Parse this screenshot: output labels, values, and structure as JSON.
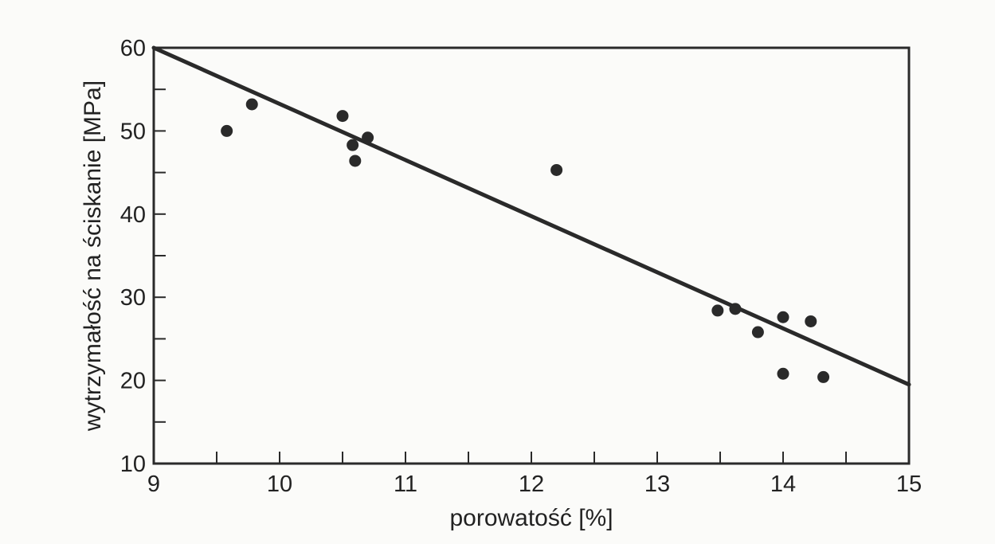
{
  "chart_data": {
    "type": "scatter",
    "title": "",
    "xlabel": "porowatość [%]",
    "ylabel": "wytrzymałość na ściskanie [MPa]",
    "xlim": [
      9,
      15
    ],
    "ylim": [
      10,
      60
    ],
    "x_ticks": [
      "9",
      "10",
      "11",
      "12",
      "13",
      "14",
      "15"
    ],
    "y_ticks": [
      "10",
      "20",
      "30",
      "40",
      "50",
      "60"
    ],
    "grid": false,
    "series": [
      {
        "points": [
          {
            "x": 9.58,
            "y": 50.0
          },
          {
            "x": 9.78,
            "y": 53.2
          },
          {
            "x": 10.5,
            "y": 51.8
          },
          {
            "x": 10.58,
            "y": 48.3
          },
          {
            "x": 10.6,
            "y": 46.4
          },
          {
            "x": 10.7,
            "y": 49.2
          },
          {
            "x": 12.2,
            "y": 45.3
          },
          {
            "x": 13.48,
            "y": 28.4
          },
          {
            "x": 13.62,
            "y": 28.6
          },
          {
            "x": 13.8,
            "y": 25.8
          },
          {
            "x": 14.0,
            "y": 27.6
          },
          {
            "x": 14.22,
            "y": 27.1
          },
          {
            "x": 14.0,
            "y": 20.8
          },
          {
            "x": 14.32,
            "y": 20.4
          }
        ]
      }
    ],
    "trendline": {
      "x": [
        9,
        15
      ],
      "y": [
        60,
        19.5
      ]
    },
    "colors": {
      "marks": "#2a2a2a",
      "axes": "#2a2a2a"
    }
  }
}
